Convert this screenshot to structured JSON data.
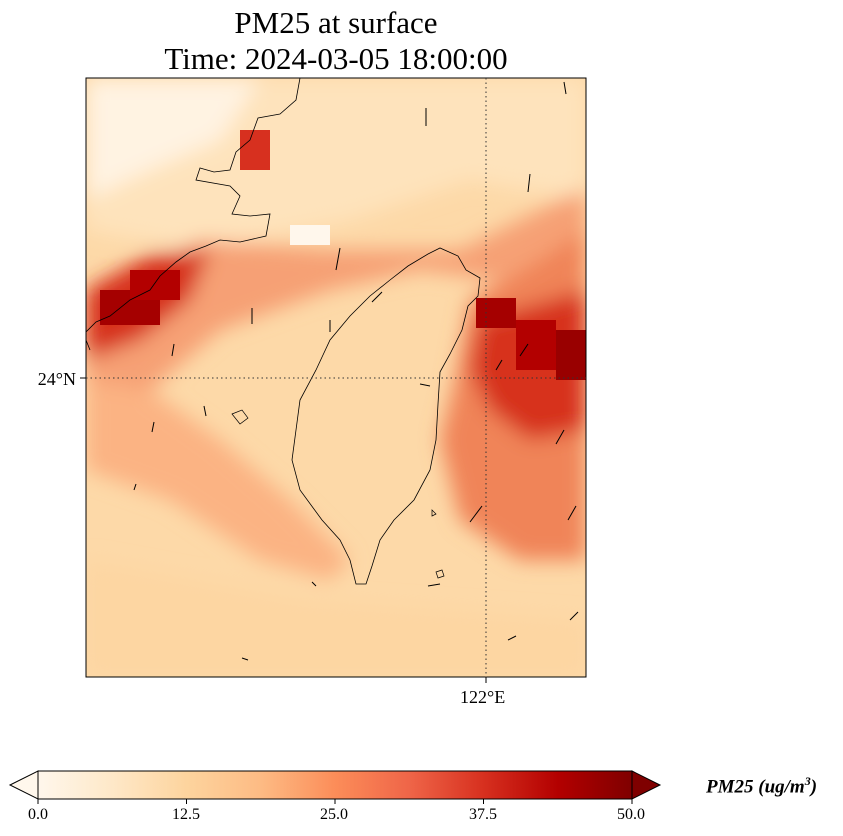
{
  "title": {
    "line1": "PM25 at surface",
    "line2": "Time: 2024-03-05 18:00:00"
  },
  "map": {
    "lat_tick_label": "24°N",
    "lon_tick_label": "122°E",
    "gridline_style": "dotted",
    "colormap": "OrRd"
  },
  "colorbar": {
    "tick_labels": [
      "0.0",
      "12.5",
      "25.0",
      "37.5",
      "50.0"
    ],
    "min": 0,
    "max": 50,
    "extend": "both",
    "label_var": "PM25 (ug/m",
    "label_exp": "3",
    "label_close": ")",
    "colors": [
      "#fff7ec",
      "#fee8c8",
      "#fdd49e",
      "#fdbb84",
      "#fc8d59",
      "#ef6548",
      "#d7301f",
      "#b30000",
      "#7f0000"
    ]
  }
}
